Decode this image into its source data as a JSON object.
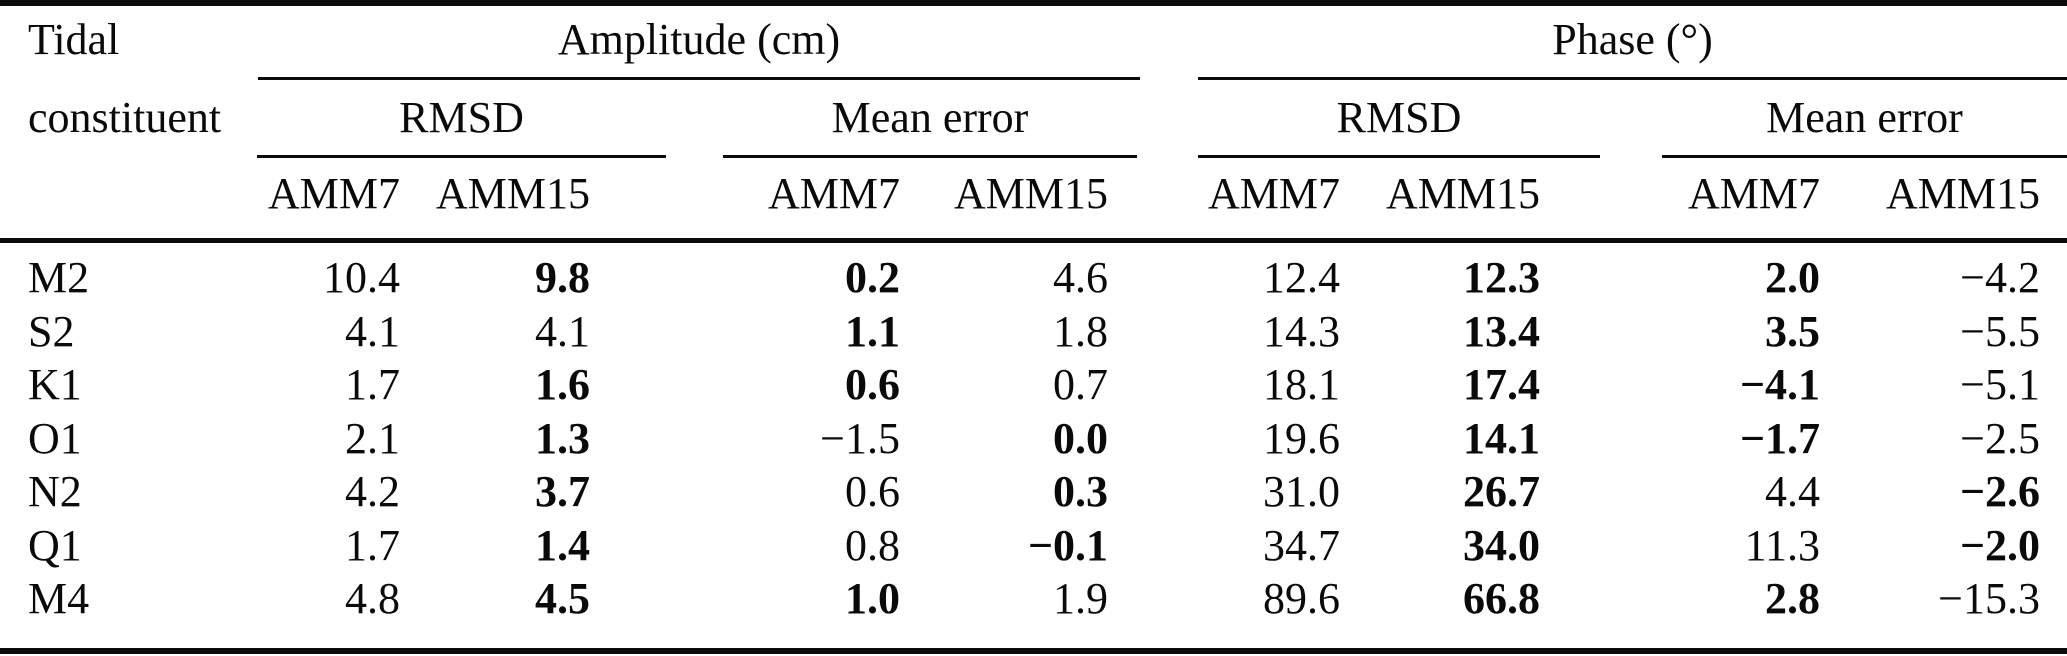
{
  "table": {
    "row_header": {
      "line1": "Tidal",
      "line2": "constituent"
    },
    "groups": [
      {
        "label": "Amplitude (cm)"
      },
      {
        "label": "Phase (°)"
      }
    ],
    "subheaders": [
      "RMSD",
      "Mean error",
      "RMSD",
      "Mean error"
    ],
    "model_headers": [
      "AMM7",
      "AMM15",
      "AMM7",
      "AMM15",
      "AMM7",
      "AMM15",
      "AMM7",
      "AMM15"
    ],
    "rows": [
      {
        "label": "M2",
        "cells": [
          {
            "v": "10.4",
            "b": false
          },
          {
            "v": "9.8",
            "b": true
          },
          {
            "v": "0.2",
            "b": true
          },
          {
            "v": "4.6",
            "b": false
          },
          {
            "v": "12.4",
            "b": false
          },
          {
            "v": "12.3",
            "b": true
          },
          {
            "v": "2.0",
            "b": true
          },
          {
            "v": "−4.2",
            "b": false
          }
        ]
      },
      {
        "label": "S2",
        "cells": [
          {
            "v": "4.1",
            "b": false
          },
          {
            "v": "4.1",
            "b": false
          },
          {
            "v": "1.1",
            "b": true
          },
          {
            "v": "1.8",
            "b": false
          },
          {
            "v": "14.3",
            "b": false
          },
          {
            "v": "13.4",
            "b": true
          },
          {
            "v": "3.5",
            "b": true
          },
          {
            "v": "−5.5",
            "b": false
          }
        ]
      },
      {
        "label": "K1",
        "cells": [
          {
            "v": "1.7",
            "b": false
          },
          {
            "v": "1.6",
            "b": true
          },
          {
            "v": "0.6",
            "b": true
          },
          {
            "v": "0.7",
            "b": false
          },
          {
            "v": "18.1",
            "b": false
          },
          {
            "v": "17.4",
            "b": true
          },
          {
            "v": "−4.1",
            "b": true
          },
          {
            "v": "−5.1",
            "b": false
          }
        ]
      },
      {
        "label": "O1",
        "cells": [
          {
            "v": "2.1",
            "b": false
          },
          {
            "v": "1.3",
            "b": true
          },
          {
            "v": "−1.5",
            "b": false
          },
          {
            "v": "0.0",
            "b": true
          },
          {
            "v": "19.6",
            "b": false
          },
          {
            "v": "14.1",
            "b": true
          },
          {
            "v": "−1.7",
            "b": true
          },
          {
            "v": "−2.5",
            "b": false
          }
        ]
      },
      {
        "label": "N2",
        "cells": [
          {
            "v": "4.2",
            "b": false
          },
          {
            "v": "3.7",
            "b": true
          },
          {
            "v": "0.6",
            "b": false
          },
          {
            "v": "0.3",
            "b": true
          },
          {
            "v": "31.0",
            "b": false
          },
          {
            "v": "26.7",
            "b": true
          },
          {
            "v": "4.4",
            "b": false
          },
          {
            "v": "−2.6",
            "b": true
          }
        ]
      },
      {
        "label": "Q1",
        "cells": [
          {
            "v": "1.7",
            "b": false
          },
          {
            "v": "1.4",
            "b": true
          },
          {
            "v": "0.8",
            "b": false
          },
          {
            "v": "−0.1",
            "b": true
          },
          {
            "v": "34.7",
            "b": false
          },
          {
            "v": "34.0",
            "b": true
          },
          {
            "v": "11.3",
            "b": false
          },
          {
            "v": "−2.0",
            "b": true
          }
        ]
      },
      {
        "label": "M4",
        "cells": [
          {
            "v": "4.8",
            "b": false
          },
          {
            "v": "4.5",
            "b": true
          },
          {
            "v": "1.0",
            "b": true
          },
          {
            "v": "1.9",
            "b": false
          },
          {
            "v": "89.6",
            "b": false
          },
          {
            "v": "66.8",
            "b": true
          },
          {
            "v": "2.8",
            "b": true
          },
          {
            "v": "−15.3",
            "b": false
          }
        ]
      }
    ]
  },
  "colors": {
    "text": "#0a0a0a",
    "background": "#ffffff",
    "rule": "#0a0a0a"
  }
}
